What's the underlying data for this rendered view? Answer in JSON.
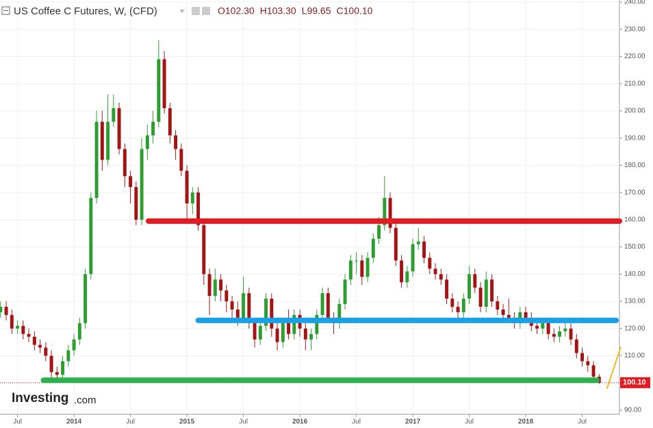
{
  "chart_data": {
    "type": "candlestick",
    "title": "US Coffee C Futures, W, (CFD)",
    "ohlc_header": [
      {
        "label": "O",
        "value": "102.30"
      },
      {
        "label": "H",
        "value": "103.30"
      },
      {
        "label": "L",
        "value": "99.65"
      },
      {
        "label": "C",
        "value": "100.10"
      }
    ],
    "last_label": "100.10",
    "logo": {
      "name": "Investing",
      "suffix": ".com"
    },
    "up_color": "#2e9e32",
    "down_color": "#a31515",
    "xlim": [
      2013.345,
      2018.83
    ],
    "xticks": [
      {
        "value": 2013.5,
        "label": "Jul"
      },
      2014,
      {
        "value": 2014.5,
        "label": "Jul"
      },
      2015,
      {
        "value": 2015.5,
        "label": "Jul"
      },
      2016,
      {
        "value": 2016.5,
        "label": "Jul"
      },
      2017,
      {
        "value": 2017.5,
        "label": "Jul"
      },
      2018,
      {
        "value": 2018.5,
        "label": "Jul"
      }
    ],
    "ylim": [
      88.48,
      240.76
    ],
    "yticks": [
      {
        "value": 90,
        "label": "90.00"
      },
      {
        "value": 100,
        "label": "100.00"
      },
      {
        "value": 110,
        "label": "110.00"
      },
      {
        "value": 120,
        "label": "120.00"
      },
      {
        "value": 130,
        "label": "130.00"
      },
      {
        "value": 140,
        "label": "140.00"
      },
      {
        "value": 150,
        "label": "150.00"
      },
      {
        "value": 160,
        "label": "160.00"
      },
      {
        "value": 170,
        "label": "170.00"
      },
      {
        "value": 180,
        "label": "180.00"
      },
      {
        "value": 190,
        "label": "190.00"
      },
      {
        "value": 200,
        "label": "200.00"
      },
      {
        "value": 210,
        "label": "210.00"
      },
      {
        "value": 220,
        "label": "220.00"
      },
      {
        "value": 230,
        "label": "230.00"
      },
      {
        "value": 240,
        "label": "240.00"
      }
    ],
    "grid": true,
    "x": [
      2013.35,
      2013.4,
      2013.45,
      2013.5,
      2013.55,
      2013.6,
      2013.65,
      2013.7,
      2013.75,
      2013.8,
      2013.85,
      2013.9,
      2013.95,
      2014.0,
      2014.05,
      2014.1,
      2014.15,
      2014.2,
      2014.25,
      2014.3,
      2014.35,
      2014.4,
      2014.45,
      2014.5,
      2014.55,
      2014.6,
      2014.65,
      2014.7,
      2014.75,
      2014.8,
      2014.85,
      2014.9,
      2014.95,
      2015.0,
      2015.05,
      2015.1,
      2015.15,
      2015.2,
      2015.25,
      2015.3,
      2015.35,
      2015.4,
      2015.45,
      2015.5,
      2015.55,
      2015.6,
      2015.65,
      2015.7,
      2015.75,
      2015.8,
      2015.85,
      2015.9,
      2015.95,
      2016.0,
      2016.05,
      2016.1,
      2016.15,
      2016.2,
      2016.25,
      2016.3,
      2016.35,
      2016.4,
      2016.45,
      2016.5,
      2016.55,
      2016.6,
      2016.65,
      2016.7,
      2016.75,
      2016.8,
      2016.85,
      2016.9,
      2016.95,
      2017.0,
      2017.05,
      2017.1,
      2017.15,
      2017.2,
      2017.25,
      2017.3,
      2017.35,
      2017.4,
      2017.45,
      2017.5,
      2017.55,
      2017.6,
      2017.65,
      2017.7,
      2017.75,
      2017.8,
      2017.85,
      2017.9,
      2017.95,
      2018.0,
      2018.05,
      2018.1,
      2018.15,
      2018.2,
      2018.25,
      2018.3,
      2018.35,
      2018.4,
      2018.45,
      2018.5,
      2018.55,
      2018.6,
      2018.65
    ],
    "open": [
      126,
      128,
      125,
      120,
      121,
      118,
      117,
      114,
      113,
      110,
      104,
      103,
      108,
      112,
      116,
      122,
      140,
      168,
      196,
      182,
      196,
      201,
      186,
      176,
      172,
      160,
      186,
      191,
      196,
      219,
      201,
      191,
      186,
      178,
      166,
      170,
      158,
      140,
      132,
      138,
      134,
      130,
      127,
      124,
      133,
      122,
      116,
      121,
      131,
      120,
      115,
      122,
      118,
      125,
      120,
      116,
      118,
      125,
      133,
      124,
      122,
      129,
      138,
      145,
      145,
      139,
      146,
      153,
      158,
      168,
      157,
      145,
      137,
      141,
      151,
      152,
      146,
      142,
      140,
      138,
      131,
      128,
      126,
      131,
      140,
      135,
      128,
      138,
      130,
      127,
      125,
      124,
      122,
      126,
      124,
      121,
      120,
      122,
      118,
      117,
      119,
      120,
      116,
      111,
      108,
      106.5,
      102.3
    ],
    "high": [
      130,
      130,
      127,
      123,
      123,
      120,
      119,
      116,
      115,
      112,
      106,
      110,
      114,
      118,
      124,
      142,
      170,
      200,
      200,
      206,
      206,
      203,
      188,
      178,
      174,
      190,
      195,
      200,
      226,
      222,
      203,
      193,
      188,
      180,
      172,
      172,
      160,
      142,
      142,
      140,
      136,
      132,
      130,
      139,
      135,
      124,
      123,
      133,
      133,
      122,
      124,
      127,
      127,
      127,
      122,
      120,
      127,
      135,
      135,
      126,
      131,
      140,
      147,
      148,
      147,
      148,
      155,
      161,
      176,
      170,
      159,
      147,
      143,
      153,
      157,
      154,
      148,
      144,
      142,
      140,
      133,
      130,
      133,
      143,
      142,
      137,
      141,
      140,
      132,
      129,
      131,
      126,
      128,
      128,
      126,
      123,
      124,
      124,
      120,
      121,
      122,
      122,
      118,
      113,
      110,
      108,
      103.3
    ],
    "low": [
      124,
      123,
      118,
      118,
      116,
      115,
      112,
      111,
      108,
      102,
      101,
      101,
      106,
      110,
      114,
      120,
      138,
      166,
      178,
      180,
      194,
      184,
      172,
      166,
      158,
      158,
      182,
      188,
      194,
      199,
      188,
      182,
      176,
      160,
      162,
      156,
      136,
      125,
      130,
      130,
      126,
      124,
      121,
      122,
      120,
      113,
      114,
      119,
      117,
      112,
      113,
      116,
      116,
      117,
      112,
      112,
      116,
      123,
      122,
      118,
      120,
      127,
      136,
      140,
      136,
      137,
      144,
      151,
      156,
      155,
      143,
      135,
      135,
      139,
      149,
      144,
      140,
      138,
      136,
      129,
      126,
      124,
      124,
      129,
      133,
      126,
      126,
      128,
      125,
      123,
      122,
      120,
      120,
      122,
      119,
      118,
      118,
      116,
      115,
      115,
      117,
      114,
      109,
      106,
      104,
      100,
      99.65
    ],
    "close": [
      128,
      125,
      120,
      121,
      118,
      117,
      114,
      113,
      110,
      104,
      103,
      108,
      112,
      116,
      122,
      140,
      168,
      196,
      182,
      196,
      201,
      186,
      176,
      172,
      160,
      186,
      191,
      196,
      219,
      201,
      191,
      186,
      178,
      166,
      170,
      158,
      140,
      132,
      138,
      134,
      130,
      127,
      124,
      133,
      122,
      116,
      121,
      131,
      120,
      115,
      122,
      118,
      125,
      120,
      116,
      118,
      125,
      133,
      124,
      122,
      129,
      138,
      145,
      145,
      139,
      146,
      153,
      158,
      168,
      157,
      145,
      137,
      141,
      151,
      152,
      146,
      142,
      140,
      138,
      131,
      128,
      126,
      131,
      140,
      135,
      128,
      138,
      130,
      127,
      125,
      124,
      122,
      126,
      124,
      121,
      120,
      122,
      118,
      117,
      119,
      120,
      116,
      111,
      108,
      106.5,
      102.3,
      100.1
    ],
    "lines": [
      {
        "color": "#e31b23",
        "x": [
          2014.66,
          2018.83
        ],
        "y": [
          159.5,
          159.5
        ]
      },
      {
        "color": "#1aa0e6",
        "x": [
          2015.1,
          2018.8
        ],
        "y": [
          123,
          123
        ]
      },
      {
        "color": "#2bb24c",
        "x": [
          2013.73,
          2018.63
        ],
        "y": [
          101,
          101
        ]
      },
      {
        "color": "#f5b921",
        "x": [
          2018.72,
          2018.84
        ],
        "y": [
          98,
          113
        ]
      }
    ]
  }
}
